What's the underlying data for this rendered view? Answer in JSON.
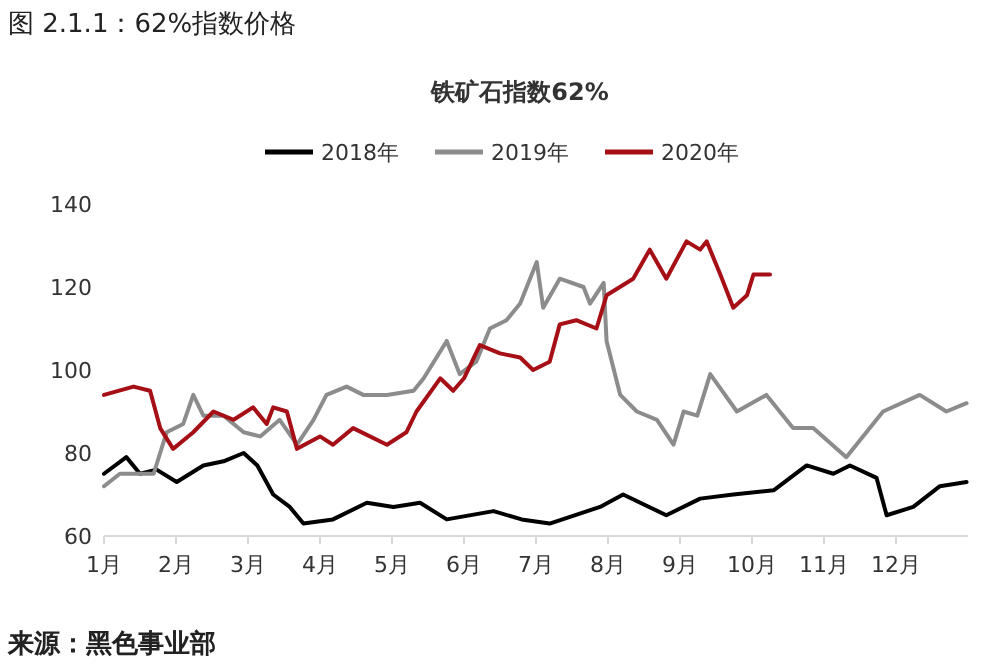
{
  "chart_data": {
    "type": "line",
    "title": "铁矿石指数62%",
    "annotations": [
      "图 2.1.1：62%指数价格",
      "来源：黑色事业部"
    ],
    "xlim": [
      1,
      13
    ],
    "ylim": [
      60,
      140
    ],
    "xticks": [
      {
        "value": 1,
        "label": "1月"
      },
      {
        "value": 2,
        "label": "2月"
      },
      {
        "value": 3,
        "label": "3月"
      },
      {
        "value": 4,
        "label": "4月"
      },
      {
        "value": 5,
        "label": "5月"
      },
      {
        "value": 6,
        "label": "6月"
      },
      {
        "value": 7,
        "label": "7月"
      },
      {
        "value": 8,
        "label": "8月"
      },
      {
        "value": 9,
        "label": "9月"
      },
      {
        "value": 10,
        "label": "10月"
      },
      {
        "value": 11,
        "label": "11月"
      },
      {
        "value": 12,
        "label": "12月"
      }
    ],
    "yticks": [
      60,
      80,
      100,
      120,
      140
    ],
    "grid": false,
    "legend": "top",
    "marker": "none",
    "line_style": "solid",
    "series": [
      {
        "name": "2018年",
        "color": "#000000",
        "x": [
          1.0,
          1.31,
          1.5,
          1.73,
          2.01,
          2.38,
          2.66,
          2.94,
          3.13,
          3.35,
          3.58,
          3.77,
          4.18,
          4.65,
          5.02,
          5.39,
          5.76,
          6.41,
          6.8,
          7.19,
          7.89,
          8.21,
          8.81,
          9.28,
          9.74,
          10.3,
          10.76,
          11.13,
          11.36,
          11.73,
          11.87,
          12.24,
          12.61,
          12.98
        ],
        "values": [
          75,
          79,
          75,
          76,
          73,
          77,
          78,
          80,
          77,
          70,
          67,
          63,
          64,
          68,
          67,
          68,
          64,
          66,
          64,
          63,
          67,
          70,
          65,
          69,
          70,
          71,
          77,
          75,
          77,
          74,
          65,
          67,
          72,
          73
        ]
      },
      {
        "name": "2019年",
        "color": "#8c8c8c",
        "x": [
          1.0,
          1.22,
          1.69,
          1.87,
          2.1,
          2.24,
          2.38,
          2.66,
          2.94,
          3.17,
          3.44,
          3.68,
          3.91,
          4.09,
          4.37,
          4.6,
          4.93,
          5.3,
          5.44,
          5.76,
          5.94,
          6.17,
          6.36,
          6.59,
          6.78,
          7.01,
          7.1,
          7.33,
          7.66,
          7.75,
          7.94,
          7.98,
          8.17,
          8.4,
          8.68,
          8.91,
          9.05,
          9.24,
          9.42,
          9.79,
          10.2,
          10.57,
          10.85,
          11.31,
          11.82,
          12.33,
          12.7,
          12.98
        ],
        "values": [
          72,
          75,
          75,
          85,
          87,
          94,
          89,
          89,
          85,
          84,
          88,
          82,
          88,
          94,
          96,
          94,
          94,
          95,
          98,
          107,
          99,
          102,
          110,
          112,
          116,
          126,
          115,
          122,
          120,
          116,
          121,
          107,
          94,
          90,
          88,
          82,
          90,
          89,
          99,
          90,
          94,
          86,
          86,
          79,
          90,
          94,
          90,
          92
        ]
      },
      {
        "name": "2020年",
        "color": "#a50f15",
        "x": [
          1.0,
          1.41,
          1.64,
          1.78,
          1.96,
          2.24,
          2.52,
          2.8,
          3.07,
          3.26,
          3.35,
          3.54,
          3.68,
          4.0,
          4.18,
          4.46,
          4.93,
          5.2,
          5.34,
          5.67,
          5.85,
          6.0,
          6.22,
          6.5,
          6.78,
          6.96,
          7.19,
          7.33,
          7.56,
          7.84,
          7.98,
          8.35,
          8.58,
          8.81,
          9.09,
          9.28,
          9.37,
          9.56,
          9.74,
          9.93,
          10.02,
          10.25
        ],
        "values": [
          94,
          96,
          95,
          86,
          81,
          85,
          90,
          88,
          91,
          87,
          91,
          90,
          81,
          84,
          82,
          86,
          82,
          85,
          90,
          98,
          95,
          98,
          106,
          104,
          103,
          100,
          102,
          111,
          112,
          110,
          118,
          122,
          129,
          122,
          131,
          129,
          131,
          123,
          115,
          118,
          123,
          123
        ]
      }
    ]
  }
}
